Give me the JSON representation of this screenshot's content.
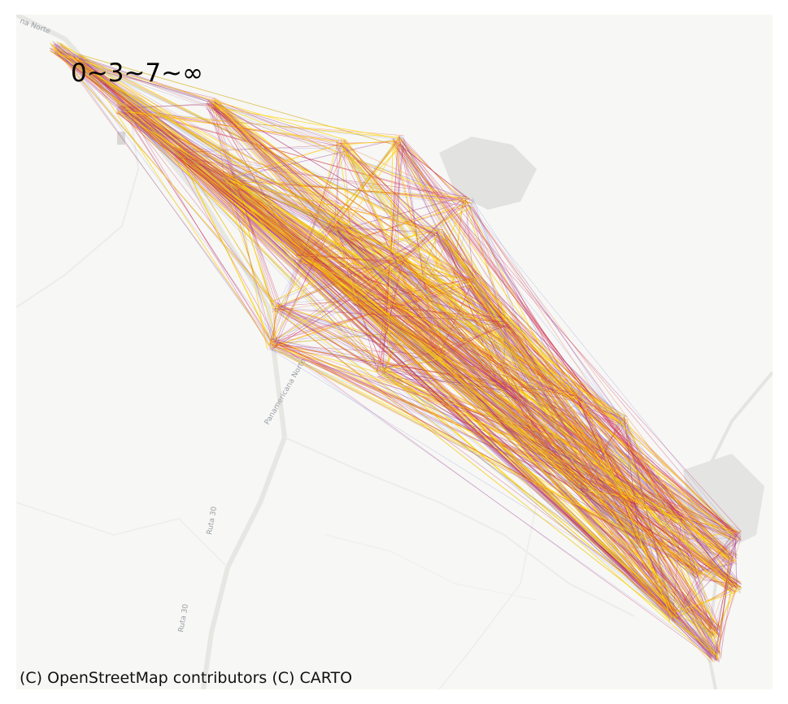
{
  "map": {
    "legend": "0~3~7~∞",
    "attribution": "(C) OpenStreetMap contributors (C) CARTO",
    "road_labels": [
      "na Norte",
      "Panamericana Norte",
      "Ruta 30",
      "Ruta 30"
    ],
    "flow_bins": [
      {
        "range": "0~3",
        "color": "#7b7fe0"
      },
      {
        "range": "3~7",
        "color": "#c2185b"
      },
      {
        "range": "7~∞",
        "color": "#ffd400"
      }
    ],
    "colors": {
      "background": "#f7f7f5",
      "road": "#e6e6e3",
      "urban_area": "#dcdcdc",
      "low_flow": "#7b7fe0",
      "mid_flow": "#c2185b",
      "mid_flow_alt": "#f05a28",
      "high_flow": "#ffd400"
    }
  }
}
